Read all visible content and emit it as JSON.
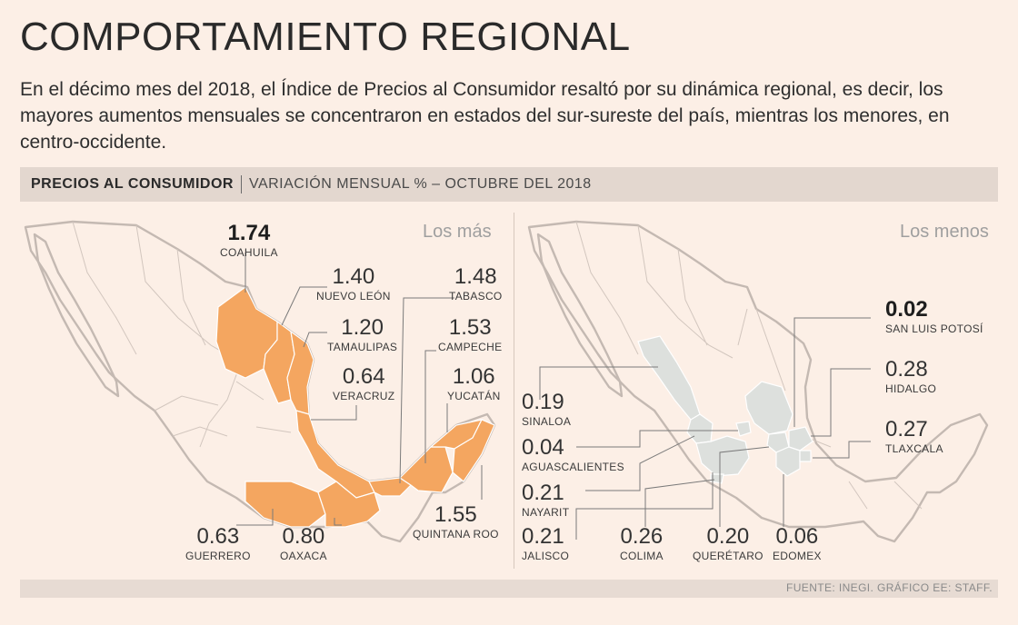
{
  "title": "COMPORTAMIENTO REGIONAL",
  "intro": "En el décimo mes del 2018, el Índice de Precios al Consumidor resaltó por su dinámica regional, es decir, los mayores aumentos mensuales se concentraron en estados del sur-sureste del país, mientras los menores, en centro-occidente.",
  "subheader": {
    "strong": "PRECIOS AL CONSUMIDOR",
    "light": "VARIACIÓN MENSUAL % – OCTUBRE DEL 2018"
  },
  "colors": {
    "highlight_most": "#f4a660",
    "highlight_least": "#dde0dd",
    "outline": "#c4b9b2",
    "background": "#fcefe6"
  },
  "panels": {
    "most": {
      "label": "Los más",
      "states": [
        {
          "name": "COAHUILA",
          "value": "1.74"
        },
        {
          "name": "NUEVO LEÓN",
          "value": "1.40"
        },
        {
          "name": "TAMAULIPAS",
          "value": "1.20"
        },
        {
          "name": "VERACRUZ",
          "value": "0.64"
        },
        {
          "name": "TABASCO",
          "value": "1.48"
        },
        {
          "name": "CAMPECHE",
          "value": "1.53"
        },
        {
          "name": "YUCATÁN",
          "value": "1.06"
        },
        {
          "name": "QUINTANA ROO",
          "value": "1.55"
        },
        {
          "name": "GUERRERO",
          "value": "0.63"
        },
        {
          "name": "OAXACA",
          "value": "0.80"
        }
      ]
    },
    "least": {
      "label": "Los menos",
      "states": [
        {
          "name": "SAN LUIS POTOSÍ",
          "value": "0.02"
        },
        {
          "name": "HIDALGO",
          "value": "0.28"
        },
        {
          "name": "TLAXCALA",
          "value": "0.27"
        },
        {
          "name": "SINALOA",
          "value": "0.19"
        },
        {
          "name": "AGUASCALIENTES",
          "value": "0.04"
        },
        {
          "name": "NAYARIT",
          "value": "0.21"
        },
        {
          "name": "JALISCO",
          "value": "0.21"
        },
        {
          "name": "COLIMA",
          "value": "0.26"
        },
        {
          "name": "QUERÉTARO",
          "value": "0.20"
        },
        {
          "name": "EDOMEX",
          "value": "0.06"
        }
      ]
    }
  },
  "footer": "FUENTE: INEGI. GRÁFICO EE: STAFF."
}
